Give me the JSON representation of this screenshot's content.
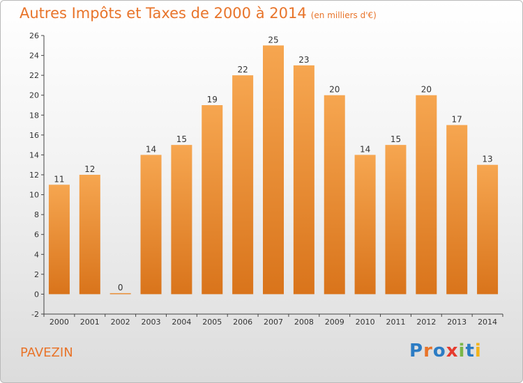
{
  "title": "Autres Impôts et Taxes de 2000 à 2014",
  "unit_note": "(en milliers d'€)",
  "location": "PAVEZIN",
  "logo": {
    "text": "Proxiti",
    "letters": [
      {
        "ch": "P",
        "color": "#2c7cc4"
      },
      {
        "ch": "r",
        "color": "#e8742a"
      },
      {
        "ch": "o",
        "color": "#2c7cc4"
      },
      {
        "ch": "x",
        "color": "#e63b2e"
      },
      {
        "ch": "i",
        "color": "#7ab648"
      },
      {
        "ch": "t",
        "color": "#2c7cc4"
      },
      {
        "ch": "i",
        "color": "#f2b31a"
      }
    ]
  },
  "colors": {
    "bar_top": "#f6a650",
    "bar_bottom": "#d9741b",
    "accent": "#e8742a"
  },
  "chart_data": {
    "type": "bar",
    "title": "Autres Impôts et Taxes de 2000 à 2014",
    "categories": [
      "2000",
      "2001",
      "2002",
      "2003",
      "2004",
      "2005",
      "2006",
      "2007",
      "2008",
      "2009",
      "2010",
      "2011",
      "2012",
      "2013",
      "2014"
    ],
    "values": [
      11,
      12,
      0,
      14,
      15,
      19,
      22,
      25,
      23,
      20,
      14,
      15,
      20,
      17,
      13
    ],
    "ylim": [
      -2,
      26
    ],
    "yticks": [
      -2,
      0,
      2,
      4,
      6,
      8,
      10,
      12,
      14,
      16,
      18,
      20,
      22,
      24,
      26
    ],
    "xlabel": "",
    "ylabel": "",
    "grid": false
  }
}
